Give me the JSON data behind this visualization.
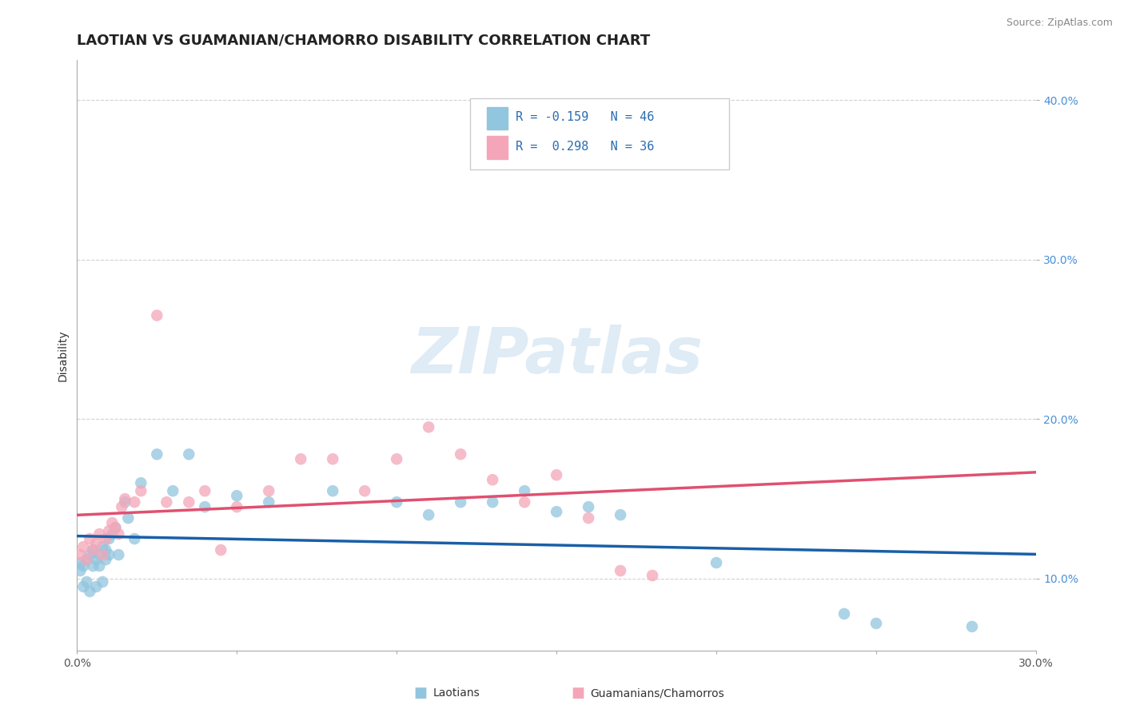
{
  "title": "LAOTIAN VS GUAMANIAN/CHAMORRO DISABILITY CORRELATION CHART",
  "source": "Source: ZipAtlas.com",
  "xlabel_laotian": "Laotians",
  "xlabel_guamanian": "Guamanians/Chamorros",
  "ylabel": "Disability",
  "xlim": [
    0.0,
    0.3
  ],
  "ylim": [
    0.055,
    0.425
  ],
  "xticks": [
    0.0,
    0.05,
    0.1,
    0.15,
    0.2,
    0.25,
    0.3
  ],
  "yticks": [
    0.1,
    0.2,
    0.3,
    0.4
  ],
  "xtick_labels": [
    "0.0%",
    "",
    "",
    "",
    "",
    "",
    "30.0%"
  ],
  "ytick_labels": [
    "10.0%",
    "20.0%",
    "30.0%",
    "40.0%"
  ],
  "color_laotian": "#92c5de",
  "color_guamanian": "#f4a6b8",
  "line_color_laotian": "#1a5fa8",
  "line_color_guamanian": "#e05070",
  "legend_R_laotian": "R = -0.159",
  "legend_N_laotian": "N = 46",
  "legend_R_guamanian": "R =  0.298",
  "legend_N_guamanian": "N = 36",
  "laotian_x": [
    0.001,
    0.001,
    0.002,
    0.002,
    0.003,
    0.003,
    0.004,
    0.004,
    0.005,
    0.005,
    0.006,
    0.006,
    0.007,
    0.007,
    0.008,
    0.008,
    0.009,
    0.009,
    0.01,
    0.01,
    0.011,
    0.012,
    0.013,
    0.015,
    0.016,
    0.018,
    0.02,
    0.025,
    0.03,
    0.035,
    0.04,
    0.05,
    0.06,
    0.08,
    0.1,
    0.11,
    0.12,
    0.13,
    0.14,
    0.15,
    0.16,
    0.17,
    0.2,
    0.24,
    0.25,
    0.28
  ],
  "laotian_y": [
    0.11,
    0.105,
    0.108,
    0.095,
    0.112,
    0.098,
    0.115,
    0.092,
    0.108,
    0.118,
    0.112,
    0.095,
    0.108,
    0.115,
    0.12,
    0.098,
    0.112,
    0.118,
    0.115,
    0.125,
    0.128,
    0.132,
    0.115,
    0.148,
    0.138,
    0.125,
    0.16,
    0.178,
    0.155,
    0.178,
    0.145,
    0.152,
    0.148,
    0.155,
    0.148,
    0.14,
    0.148,
    0.148,
    0.155,
    0.142,
    0.145,
    0.14,
    0.11,
    0.078,
    0.072,
    0.07
  ],
  "guamanian_x": [
    0.001,
    0.002,
    0.003,
    0.004,
    0.005,
    0.006,
    0.007,
    0.008,
    0.009,
    0.01,
    0.011,
    0.012,
    0.013,
    0.014,
    0.015,
    0.018,
    0.02,
    0.025,
    0.028,
    0.035,
    0.04,
    0.045,
    0.05,
    0.06,
    0.07,
    0.08,
    0.09,
    0.1,
    0.11,
    0.12,
    0.13,
    0.14,
    0.15,
    0.16,
    0.17,
    0.18
  ],
  "guamanian_y": [
    0.115,
    0.12,
    0.112,
    0.125,
    0.118,
    0.122,
    0.128,
    0.115,
    0.125,
    0.13,
    0.135,
    0.132,
    0.128,
    0.145,
    0.15,
    0.148,
    0.155,
    0.265,
    0.148,
    0.148,
    0.155,
    0.118,
    0.145,
    0.155,
    0.175,
    0.175,
    0.155,
    0.175,
    0.195,
    0.178,
    0.162,
    0.148,
    0.165,
    0.138,
    0.105,
    0.102
  ],
  "background_color": "#ffffff",
  "grid_color": "#cccccc",
  "watermark_text": "ZIPatlas",
  "watermark_color": "#b8d4ea",
  "title_fontsize": 13,
  "axis_label_fontsize": 10,
  "tick_fontsize": 10,
  "legend_fontsize": 11,
  "source_fontsize": 9,
  "tick_color_y": "#4a90d9",
  "tick_color_x": "#555555"
}
